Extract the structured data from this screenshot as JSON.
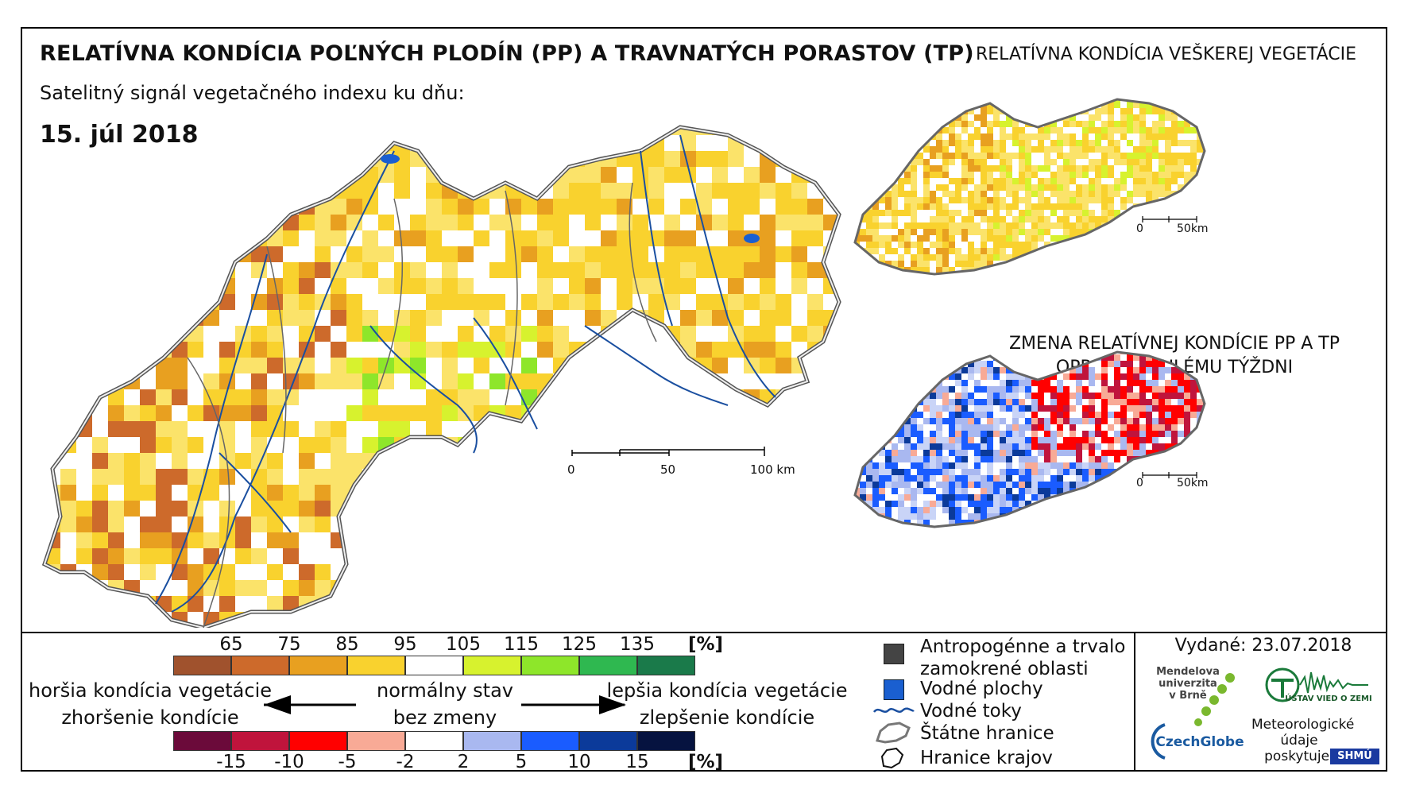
{
  "header": {
    "title": "RELATÍVNA KONDÍCIA POĽNÝCH PLODÍN (PP) A TRAVNATÝCH PORASTOV (TP)",
    "subtitle": "Satelitný signál vegetačného indexu ku dňu:",
    "date": "15. júl 2018"
  },
  "insets": {
    "vegetation_title": "RELATÍVNA KONDÍCIA VEŠKEREJ VEGETÁCIE",
    "change_title_line1": "ZMENA RELATÍVNEJ KONDÍCIE PP A TP",
    "change_title_line2": "OPROTI MINULÉMU TÝŽDNI",
    "scale_0": "0",
    "scale_50km": "50km"
  },
  "main_scale": {
    "l0": "0",
    "l50": "50",
    "l100": "100 km"
  },
  "legend": {
    "condition_ticks": [
      "65",
      "75",
      "85",
      "95",
      "105",
      "115",
      "125",
      "135"
    ],
    "condition_unit": "[%]",
    "condition_colors": [
      "#a0522d",
      "#cd6a2b",
      "#e8a020",
      "#f9d22e",
      "#ffffff",
      "#d7f22e",
      "#8ee62a",
      "#2fb850",
      "#1a7a4a"
    ],
    "change_ticks": [
      "-15",
      "-10",
      "-5",
      "-2",
      "2",
      "5",
      "10",
      "15"
    ],
    "change_unit": "[%]",
    "change_colors": [
      "#6b0a3a",
      "#c0143c",
      "#ff0000",
      "#f8aa96",
      "#ffffff",
      "#a9b8f0",
      "#1a5cff",
      "#0b3a9a",
      "#061340"
    ],
    "worse_line1": "horšia kondícia vegetácie",
    "worse_line2": "zhoršenie kondície",
    "normal_line1": "normálny stav",
    "normal_line2": "bez zmeny",
    "better_line1": "lepšia kondícia vegetácie",
    "better_line2": "zlepšenie kondície"
  },
  "key": {
    "anthropogenic_line1": "Antropogénne a trvalo",
    "anthropogenic_line2": "zamokrené oblasti",
    "water_bodies": "Vodné plochy",
    "rivers": "Vodné toky",
    "state_border": "Štátne hranice",
    "region_border": "Hranice krajov"
  },
  "credits": {
    "issued": "Vydané: 23.07.2018",
    "mendel_line1": "Mendelova",
    "mendel_line2": "univerzita",
    "mendel_line3": "v Brně",
    "czechglobe": "CzechGlobe",
    "ustav": "ÚSTAV VIED O ZEMI",
    "meteo_line1": "Meteorologické",
    "meteo_line2": "údaje",
    "meteo_line3": "poskytuje:",
    "shmu": "SHMÚ"
  }
}
